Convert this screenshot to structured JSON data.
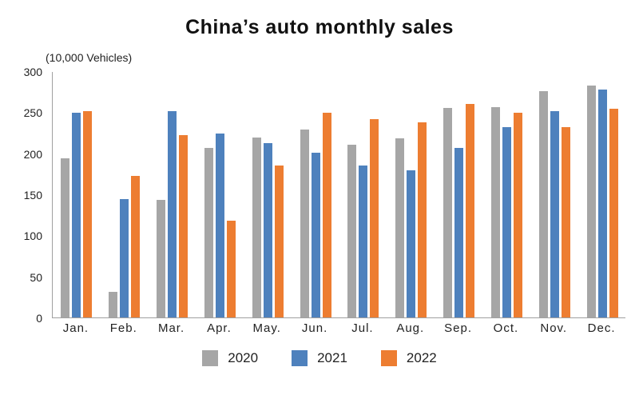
{
  "title": "China’s auto monthly sales",
  "unit_label": "(10,000 Vehicles)",
  "colors": {
    "series_2020": "#A6A6A6",
    "series_2021": "#4E81BD",
    "series_2022": "#ED7D31",
    "axis_line": "#a0a0a0",
    "text": "#222222"
  },
  "chart_data": {
    "type": "bar",
    "title": "China’s auto monthly sales",
    "unit": "(10,000 Vehicles)",
    "categories": [
      "Jan.",
      "Feb.",
      "Mar.",
      "Apr.",
      "May.",
      "Jun.",
      "Jul.",
      "Aug.",
      "Sep.",
      "Oct.",
      "Nov.",
      "Dec."
    ],
    "series": [
      {
        "name": "2020",
        "color": "#A6A6A6",
        "values": [
          194,
          31,
          144,
          207,
          220,
          230,
          211,
          219,
          256,
          257,
          277,
          283
        ]
      },
      {
        "name": "2021",
        "color": "#4E81BD",
        "values": [
          250,
          145,
          252,
          225,
          213,
          201,
          186,
          180,
          207,
          233,
          252,
          279
        ]
      },
      {
        "name": "2022",
        "color": "#ED7D31",
        "values": [
          252,
          173,
          223,
          118,
          186,
          250,
          242,
          238,
          261,
          250,
          233,
          255
        ]
      }
    ],
    "ylim": [
      0,
      300
    ],
    "yticks": [
      0,
      50,
      100,
      150,
      200,
      250,
      300
    ],
    "grid": false,
    "legend_position": "bottom"
  }
}
